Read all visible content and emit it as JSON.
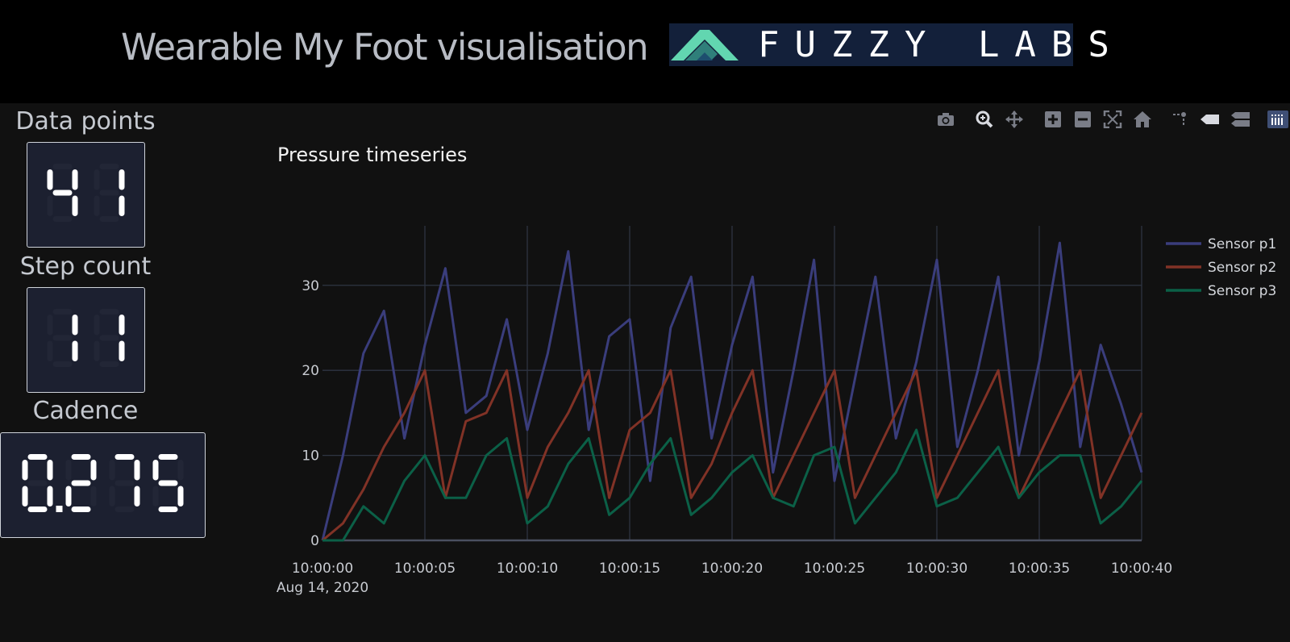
{
  "header": {
    "title": "Wearable My Foot visualisation",
    "logo_text": "FUZZY LABS"
  },
  "modebar": {
    "buttons": [
      {
        "name": "camera-icon",
        "label": "Download plot as a png"
      },
      {
        "name": "zoom-icon",
        "label": "Zoom"
      },
      {
        "name": "pan-icon",
        "label": "Pan"
      },
      {
        "name": "zoom-in-icon",
        "label": "Zoom in"
      },
      {
        "name": "zoom-out-icon",
        "label": "Zoom out"
      },
      {
        "name": "autoscale-icon",
        "label": "Autoscale"
      },
      {
        "name": "home-icon",
        "label": "Reset axes"
      },
      {
        "name": "spike-lines-icon",
        "label": "Toggle Spike Lines"
      },
      {
        "name": "hover-closest-icon",
        "label": "Show closest data on hover"
      },
      {
        "name": "hover-compare-icon",
        "label": "Compare data on hover"
      },
      {
        "name": "plotly-logo-icon",
        "label": "Produced with Plotly"
      }
    ]
  },
  "kpis": {
    "data_points": {
      "label": "Data points",
      "value": "41"
    },
    "step_count": {
      "label": "Step count",
      "value": "11"
    },
    "cadence": {
      "label": "Cadence",
      "value": "0.275"
    }
  },
  "chart_data": {
    "type": "line",
    "title": "Pressure timeseries",
    "x_start": "10:00:00",
    "x_start_date": "Aug 14, 2020",
    "x_step_seconds": 1,
    "x_range": [
      "10:00:00",
      "10:00:40"
    ],
    "x_tick_labels": [
      "10:00:00",
      "10:00:05",
      "10:00:10",
      "10:00:15",
      "10:00:20",
      "10:00:25",
      "10:00:30",
      "10:00:35",
      "10:00:40"
    ],
    "y_range": [
      0,
      37
    ],
    "y_ticks": [
      0,
      10,
      20,
      30
    ],
    "grid": true,
    "legend_position": "top-right",
    "series": [
      {
        "name": "Sensor p1",
        "color": "#3a3d7c",
        "values": [
          0,
          10,
          22,
          27,
          12,
          23,
          32,
          15,
          17,
          26,
          13,
          22,
          34,
          13,
          24,
          26,
          7,
          25,
          31,
          12,
          23,
          31,
          8,
          20,
          33,
          7,
          19,
          31,
          12,
          21,
          33,
          11,
          20,
          31,
          10,
          21,
          35,
          11,
          23,
          16,
          8
        ]
      },
      {
        "name": "Sensor p2",
        "color": "#813226",
        "values": [
          0,
          2,
          6,
          11,
          15,
          20,
          5,
          14,
          15,
          20,
          5,
          11,
          15,
          20,
          5,
          13,
          15,
          20,
          5,
          9,
          15,
          20,
          5,
          10,
          15,
          20,
          5,
          10,
          15,
          20,
          5,
          10,
          15,
          20,
          5,
          10,
          15,
          20,
          5,
          10,
          15
        ]
      },
      {
        "name": "Sensor p3",
        "color": "#0b6047",
        "values": [
          0,
          0,
          4,
          2,
          7,
          10,
          5,
          5,
          10,
          12,
          2,
          4,
          9,
          12,
          3,
          5,
          9,
          12,
          3,
          5,
          8,
          10,
          5,
          4,
          10,
          11,
          2,
          5,
          8,
          13,
          4,
          5,
          8,
          11,
          5,
          8,
          10,
          10,
          2,
          4,
          7
        ]
      }
    ]
  }
}
